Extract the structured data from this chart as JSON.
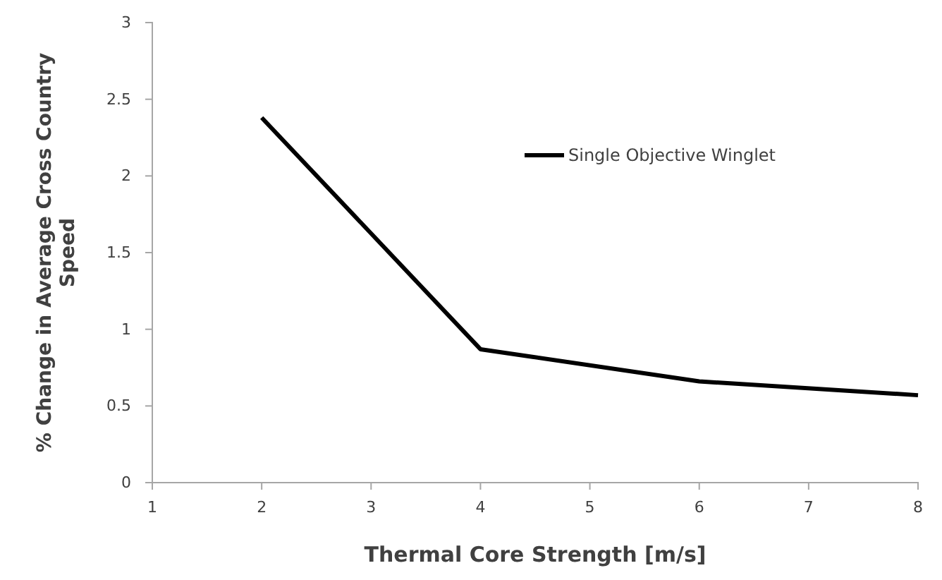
{
  "chart_data": {
    "type": "line",
    "xlabel": "Thermal Core Strength [m/s]",
    "ylabel": "% Change in Average Cross Country Speed",
    "x": [
      2,
      4,
      6,
      8
    ],
    "series": [
      {
        "name": "Single Objective Winglet",
        "color": "#000000",
        "values": [
          2.38,
          0.87,
          0.66,
          0.57
        ]
      }
    ],
    "xlim": [
      1,
      8
    ],
    "xticks": [
      1,
      2,
      3,
      4,
      5,
      6,
      7,
      8
    ],
    "ylim": [
      0,
      3
    ],
    "yticks": [
      0,
      0.5,
      1,
      1.5,
      2,
      2.5,
      3
    ],
    "grid": false,
    "legend": "top right",
    "marker": "none",
    "line_style": "solid"
  }
}
